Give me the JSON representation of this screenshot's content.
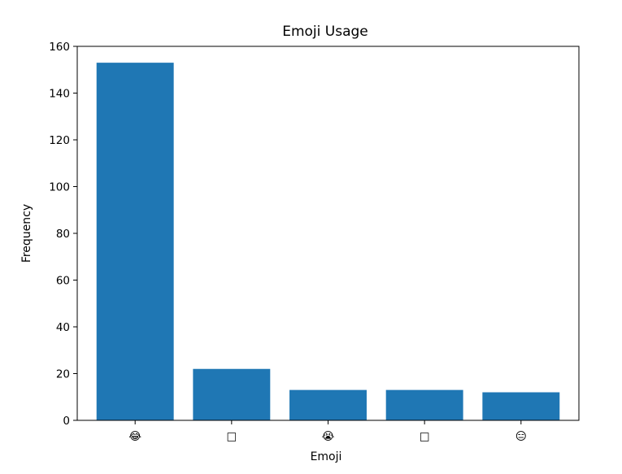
{
  "chart_data": {
    "type": "bar",
    "title": "Emoji Usage",
    "xlabel": "Emoji",
    "ylabel": "Frequency",
    "categories": [
      "😂",
      "□",
      "😭",
      "□",
      "😑"
    ],
    "values": [
      153,
      22,
      13,
      13,
      12
    ],
    "ylim": [
      0,
      160
    ],
    "yticks": [
      0,
      20,
      40,
      60,
      80,
      100,
      120,
      140,
      160
    ],
    "grid": false,
    "legend": "none",
    "colors": {
      "bar": "#1f77b4",
      "axis": "#000000",
      "background": "#ffffff"
    }
  }
}
